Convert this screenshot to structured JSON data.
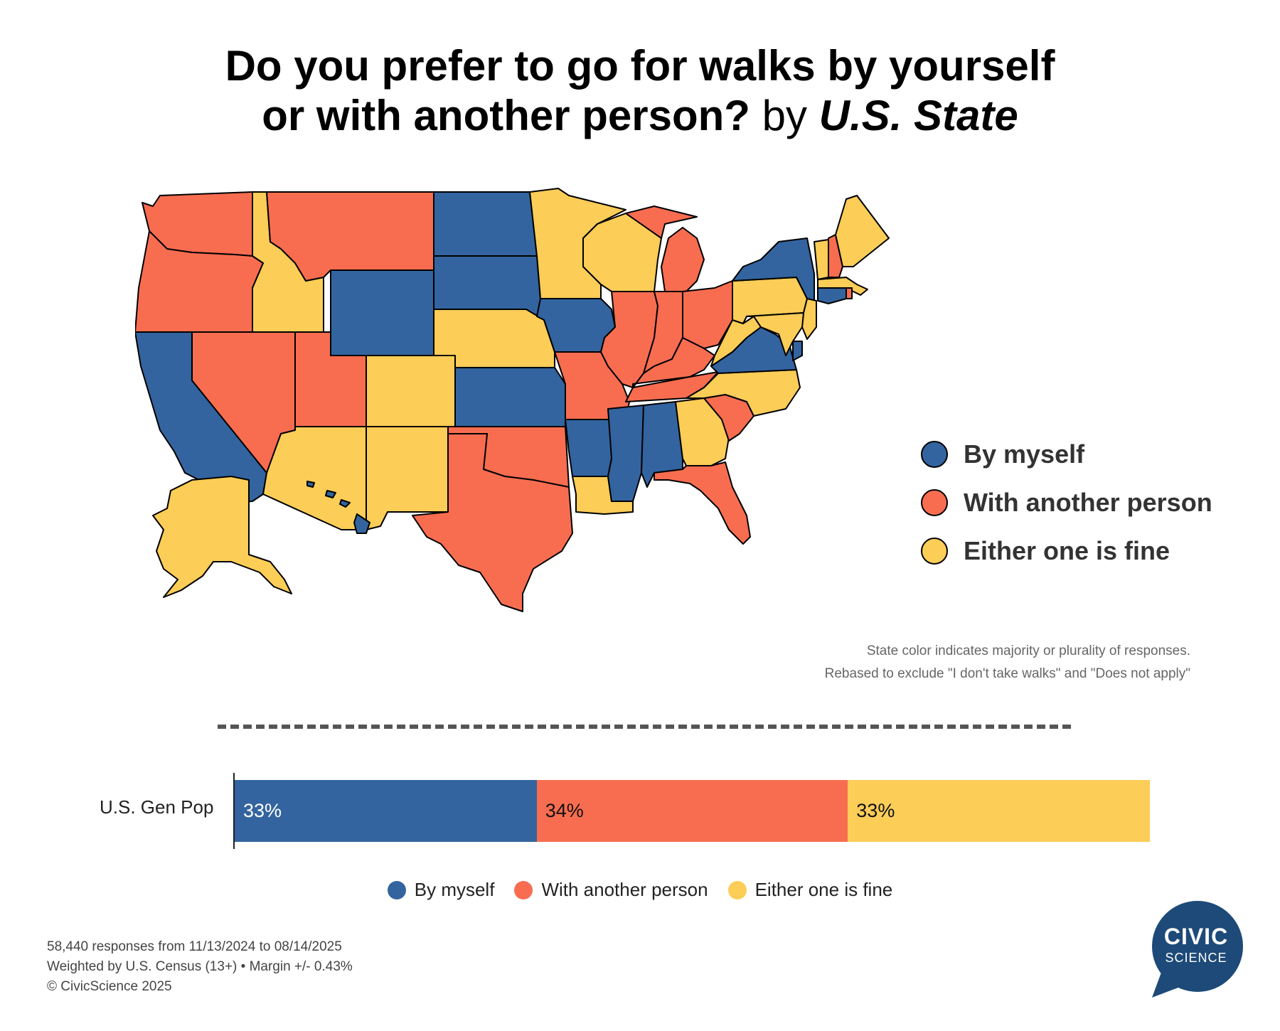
{
  "title": {
    "line1": "Do you prefer to go for walks by yourself",
    "line2_main": "or with another person?",
    "line2_by": "by",
    "line2_em": "U.S. State"
  },
  "colors": {
    "by_myself": "#33649f",
    "with_another": "#f86d50",
    "either": "#fccd57"
  },
  "map_legend": {
    "items": [
      {
        "label": "By myself",
        "key": "by_myself"
      },
      {
        "label": "With another person",
        "key": "with_another"
      },
      {
        "label": "Either one is fine",
        "key": "either"
      }
    ]
  },
  "states": {
    "WA": "with_another",
    "OR": "with_another",
    "CA": "by_myself",
    "ID": "either",
    "NV": "with_another",
    "MT": "with_another",
    "WY": "by_myself",
    "UT": "with_another",
    "AZ": "either",
    "CO": "either",
    "NM": "either",
    "ND": "by_myself",
    "SD": "by_myself",
    "NE": "either",
    "KS": "by_myself",
    "OK": "with_another",
    "TX": "with_another",
    "MN": "either",
    "IA": "by_myself",
    "MO": "with_another",
    "AR": "by_myself",
    "LA": "either",
    "WI": "either",
    "IL": "with_another",
    "MI": "with_another",
    "IN": "with_another",
    "OH": "with_another",
    "KY": "with_another",
    "TN": "with_another",
    "MS": "by_myself",
    "AL": "by_myself",
    "GA": "either",
    "FL": "with_another",
    "SC": "with_another",
    "NC": "either",
    "VA": "by_myself",
    "WV": "either",
    "PA": "either",
    "NY": "by_myself",
    "VT": "either",
    "NH": "with_another",
    "ME": "either",
    "MA": "either",
    "RI": "with_another",
    "CT": "by_myself",
    "NJ": "either",
    "DE": "by_myself",
    "MD": "either",
    "AK": "either",
    "HI": "by_myself"
  },
  "notes": {
    "line1": "State color indicates majority or plurality of responses.",
    "line2": "Rebased to exclude  \"I don't take walks\" and \"Does not apply\""
  },
  "gen_pop": {
    "label": "U.S. Gen Pop",
    "segments": [
      {
        "key": "by_myself",
        "value": 33,
        "text": "33%"
      },
      {
        "key": "with_another",
        "value": 34,
        "text": "34%"
      },
      {
        "key": "either",
        "value": 33,
        "text": "33%"
      }
    ]
  },
  "bottom_legend": {
    "items": [
      {
        "label": "By myself",
        "key": "by_myself"
      },
      {
        "label": "With another person",
        "key": "with_another"
      },
      {
        "label": "Either one is fine",
        "key": "either"
      }
    ]
  },
  "footer": {
    "line1": "58,440 responses from 11/13/2024 to 08/14/2025",
    "line2": "Weighted by U.S. Census (13+)  •  Margin +/- 0.43%",
    "line3": "© CivicScience 2025"
  },
  "logo": {
    "word1": "CIVIC",
    "word2": "SCIENCE",
    "color": "#1d4a78"
  }
}
